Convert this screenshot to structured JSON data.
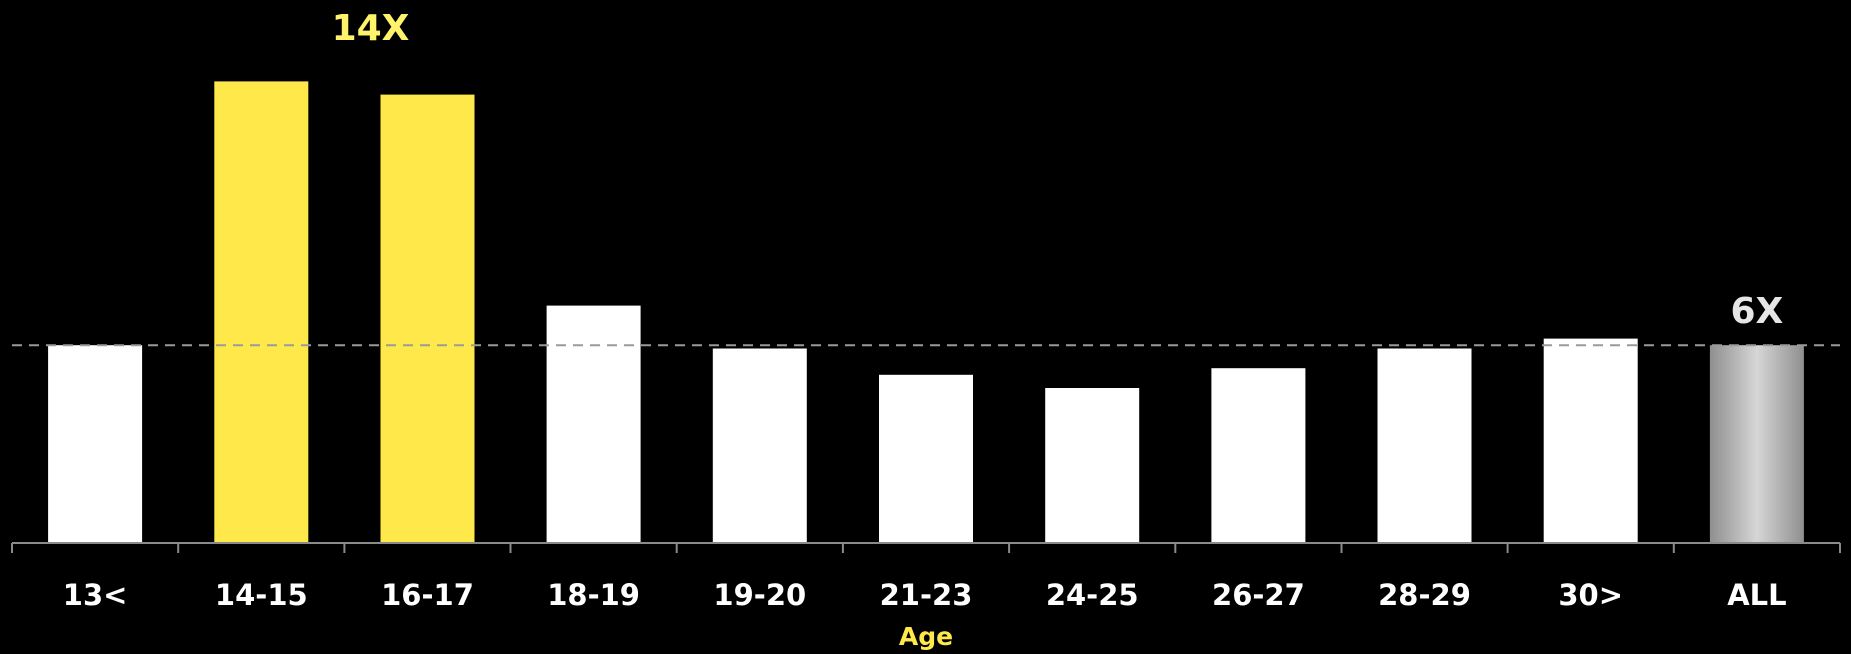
{
  "chart_data": {
    "type": "bar",
    "categories": [
      "13<",
      "14-15",
      "16-17",
      "18-19",
      "19-20",
      "21-23",
      "24-25",
      "26-27",
      "28-29",
      "30>",
      "ALL"
    ],
    "values": [
      6.0,
      14.0,
      13.6,
      7.2,
      5.9,
      5.1,
      4.7,
      5.3,
      5.9,
      6.2,
      6.0
    ],
    "highlighted": [
      "14-15",
      "16-17"
    ],
    "reference_line": 6.0,
    "data_labels": [
      {
        "category": "16-17",
        "text": "14X"
      },
      {
        "category": "ALL",
        "text": "6X"
      }
    ],
    "title": "",
    "xlabel": "Age",
    "ylabel": "",
    "ylim": [
      0,
      14.8
    ],
    "grid": false,
    "legend": "none"
  },
  "colors": {
    "background": "#000000",
    "bar_default": "#ffffff",
    "bar_highlight": "#ffe94a",
    "bar_all": "#bdbdbd",
    "label_highlight": "#fff36b",
    "label_all": "#e6e6e6",
    "axis": "#8a8a8a",
    "reference_line": "#9a9a9a",
    "axis_title": "#ffe94a"
  }
}
